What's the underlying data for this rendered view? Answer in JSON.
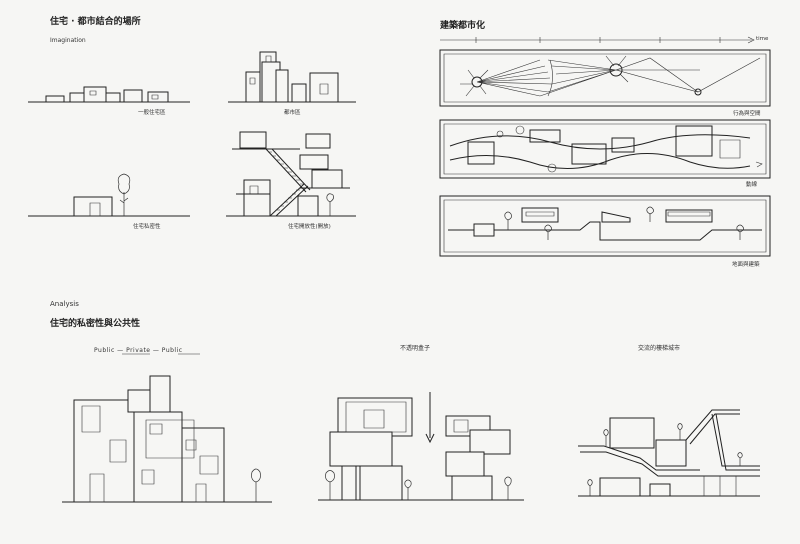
{
  "top_left": {
    "title": "住宅 · 都市結合的場所",
    "subtitle": "Imagination",
    "captions": {
      "general_house": "一般住宅區",
      "city_area": "都市區",
      "house_privacy": "住宅私密性",
      "house_openness": "住宅開放性(開放)"
    }
  },
  "top_right": {
    "title": "建築都市化",
    "axis_label": "time",
    "captions": {
      "panel1": "行為與空間",
      "panel2": "動線",
      "panel3": "地面與建築"
    }
  },
  "bottom": {
    "heading_en": "Analysis",
    "heading_zh": "住宅的私密性與公共性",
    "sub_left": "Public — Private — Public",
    "sub_middle": "不透明盒子",
    "sub_right": "交流的樓梯城市"
  }
}
